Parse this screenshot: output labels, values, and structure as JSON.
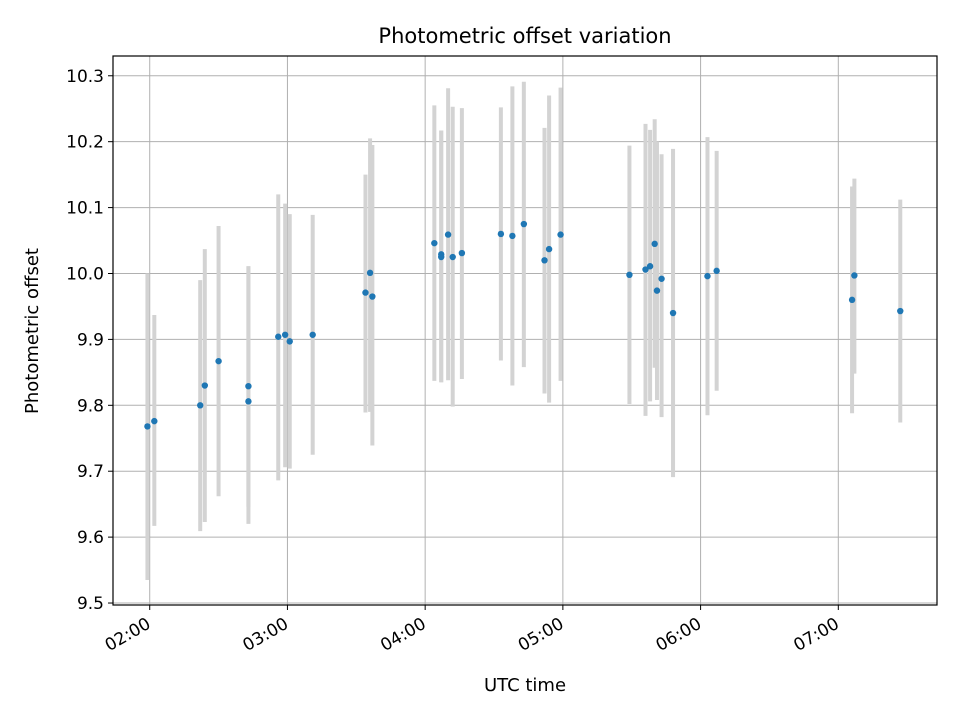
{
  "chart_data": {
    "type": "scatter",
    "title": "Photometric offset variation",
    "xlabel": "UTC time",
    "ylabel": "Photometric offset",
    "xlim": [
      "01:44",
      "07:43"
    ],
    "ylim": [
      9.497,
      10.33
    ],
    "grid": true,
    "x_ticks": [
      "02:00",
      "03:00",
      "04:00",
      "05:00",
      "06:00",
      "07:00"
    ],
    "y_ticks": [
      "9.5",
      "9.6",
      "9.7",
      "9.8",
      "9.9",
      "10.0",
      "10.1",
      "10.2",
      "10.3"
    ],
    "colors": {
      "points": "#1f77b4",
      "error_bars": "#d3d3d3",
      "grid": "#b0b0b0"
    },
    "points": [
      {
        "x": "01:59",
        "y": 9.768,
        "y_low": 9.535,
        "y_high": 10.0
      },
      {
        "x": "02:02",
        "y": 9.776,
        "y_low": 9.617,
        "y_high": 9.937
      },
      {
        "x": "02:22",
        "y": 9.8,
        "y_low": 9.609,
        "y_high": 9.99
      },
      {
        "x": "02:24",
        "y": 9.83,
        "y_low": 9.623,
        "y_high": 10.037
      },
      {
        "x": "02:30",
        "y": 9.867,
        "y_low": 9.662,
        "y_high": 10.072
      },
      {
        "x": "02:43",
        "y": 9.806,
        "y_low": 9.62,
        "y_high": 10.011
      },
      {
        "x": "02:43",
        "y": 9.829,
        "y_low": 9.646,
        "y_high": 10.011
      },
      {
        "x": "02:56",
        "y": 9.904,
        "y_low": 9.686,
        "y_high": 10.12
      },
      {
        "x": "02:59",
        "y": 9.907,
        "y_low": 9.706,
        "y_high": 10.106
      },
      {
        "x": "03:01",
        "y": 9.897,
        "y_low": 9.704,
        "y_high": 10.09
      },
      {
        "x": "03:11",
        "y": 9.907,
        "y_low": 9.725,
        "y_high": 10.089
      },
      {
        "x": "03:34",
        "y": 9.971,
        "y_low": 9.789,
        "y_high": 10.15
      },
      {
        "x": "03:36",
        "y": 10.001,
        "y_low": 9.79,
        "y_high": 10.205
      },
      {
        "x": "03:37",
        "y": 9.965,
        "y_low": 9.739,
        "y_high": 10.195
      },
      {
        "x": "04:04",
        "y": 10.046,
        "y_low": 9.837,
        "y_high": 10.255
      },
      {
        "x": "04:07",
        "y": 10.029,
        "y_low": 9.835,
        "y_high": 10.217
      },
      {
        "x": "04:07",
        "y": 10.025,
        "y_low": 9.835,
        "y_high": 10.217
      },
      {
        "x": "04:10",
        "y": 10.059,
        "y_low": 9.838,
        "y_high": 10.281
      },
      {
        "x": "04:12",
        "y": 10.025,
        "y_low": 9.798,
        "y_high": 10.253
      },
      {
        "x": "04:16",
        "y": 10.031,
        "y_low": 9.84,
        "y_high": 10.251
      },
      {
        "x": "04:33",
        "y": 10.06,
        "y_low": 9.868,
        "y_high": 10.252
      },
      {
        "x": "04:38",
        "y": 10.057,
        "y_low": 9.83,
        "y_high": 10.284
      },
      {
        "x": "04:43",
        "y": 10.075,
        "y_low": 9.858,
        "y_high": 10.291
      },
      {
        "x": "04:52",
        "y": 10.02,
        "y_low": 9.818,
        "y_high": 10.221
      },
      {
        "x": "04:54",
        "y": 10.037,
        "y_low": 9.804,
        "y_high": 10.27
      },
      {
        "x": "04:59",
        "y": 10.059,
        "y_low": 9.837,
        "y_high": 10.282
      },
      {
        "x": "05:29",
        "y": 9.998,
        "y_low": 9.802,
        "y_high": 10.194
      },
      {
        "x": "05:36",
        "y": 10.006,
        "y_low": 9.784,
        "y_high": 10.227
      },
      {
        "x": "05:38",
        "y": 10.011,
        "y_low": 9.806,
        "y_high": 10.218
      },
      {
        "x": "05:40",
        "y": 10.045,
        "y_low": 9.857,
        "y_high": 10.234
      },
      {
        "x": "05:41",
        "y": 9.974,
        "y_low": 9.808,
        "y_high": 10.2
      },
      {
        "x": "05:43",
        "y": 9.992,
        "y_low": 9.782,
        "y_high": 10.181
      },
      {
        "x": "05:48",
        "y": 9.94,
        "y_low": 9.691,
        "y_high": 10.189
      },
      {
        "x": "06:03",
        "y": 9.996,
        "y_low": 9.785,
        "y_high": 10.207
      },
      {
        "x": "06:07",
        "y": 10.004,
        "y_low": 9.822,
        "y_high": 10.186
      },
      {
        "x": "07:06",
        "y": 9.96,
        "y_low": 9.788,
        "y_high": 10.132
      },
      {
        "x": "07:07",
        "y": 9.997,
        "y_low": 9.848,
        "y_high": 10.144
      },
      {
        "x": "07:27",
        "y": 9.943,
        "y_low": 9.774,
        "y_high": 10.112
      }
    ]
  }
}
